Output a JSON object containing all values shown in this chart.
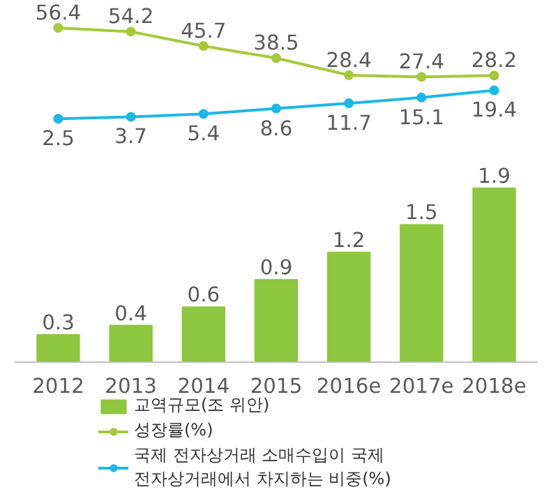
{
  "chart_data": [
    {
      "type": "line",
      "categories": [
        null,
        null,
        null,
        null,
        null,
        null,
        null
      ],
      "tick_labels": false,
      "data_labels": true,
      "legend": "bottom",
      "marker": "circle",
      "line_style": "solid",
      "series": [
        {
          "name": "성장률(%)",
          "color": "#a6c83a",
          "values": [
            56.4,
            54.2,
            45.7,
            38.5,
            28.4,
            27.4,
            28.2
          ]
        },
        {
          "name": "국제 전자상거래 소매수입이 국제 전자상거래에서 차지하는 비중(%)",
          "color": "#1cb8e6",
          "values": [
            2.5,
            3.7,
            5.4,
            8.6,
            11.7,
            15.1,
            19.4
          ]
        }
      ]
    },
    {
      "type": "bar",
      "categories": [
        "2012",
        "2013",
        "2014",
        "2015",
        "2016e",
        "2017e",
        "2018e"
      ],
      "data_labels": true,
      "legend": "bottom",
      "grid": false,
      "series": [
        {
          "name": "교역규모(조 위안)",
          "color": "#8dc63f",
          "values": [
            0.3,
            0.4,
            0.6,
            0.9,
            1.2,
            1.5,
            1.9
          ]
        }
      ]
    }
  ]
}
